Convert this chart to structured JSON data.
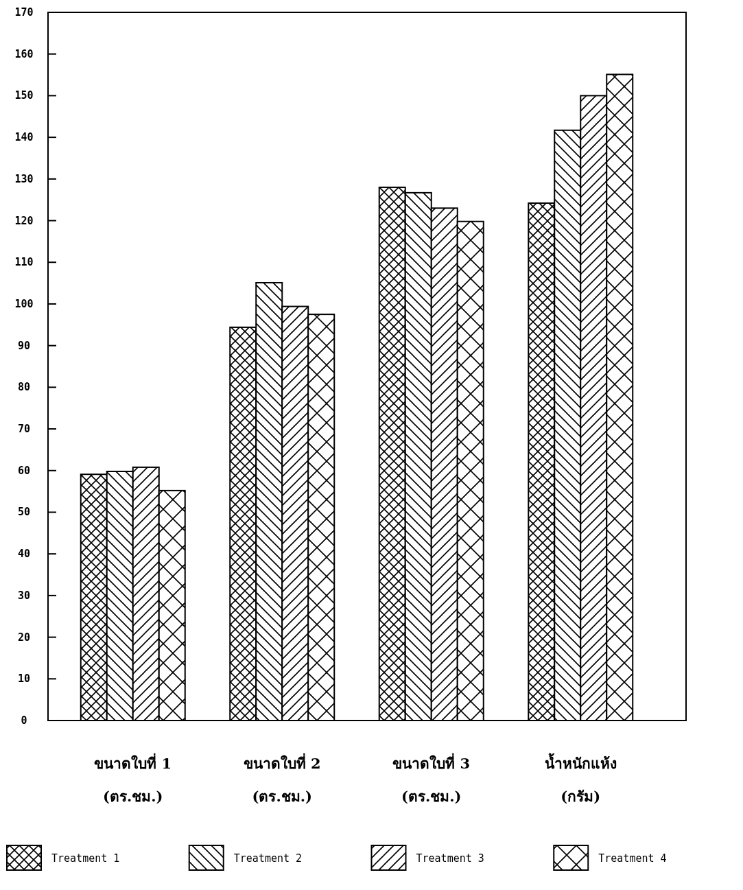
{
  "chart_data": {
    "type": "bar",
    "categories": [
      "ขนาดใบที่ 1\n(ตร.ชม.)",
      "ขนาดใบที่ 2\n(ตร.ชม.)",
      "ขนาดใบที่ 3\n(ตร.ชม.)",
      "น้ำหนักแห้ง\n(กรัม)"
    ],
    "series": [
      {
        "name": "Treatment 1",
        "color": "#000000",
        "values": [
          59.1,
          94.4,
          128.0,
          124.2
        ]
      },
      {
        "name": "Treatment 2",
        "color": "#000000",
        "values": [
          59.8,
          105.1,
          126.7,
          141.7
        ]
      },
      {
        "name": "Treatment 3",
        "color": "#000000",
        "values": [
          60.8,
          99.4,
          123.0,
          150.0
        ]
      },
      {
        "name": "Treatment 4",
        "color": "#000000",
        "values": [
          55.2,
          97.5,
          119.8,
          155.1
        ]
      }
    ],
    "ylim": [
      0,
      170
    ],
    "yticks": [
      0,
      10,
      20,
      30,
      40,
      50,
      60,
      70,
      80,
      90,
      100,
      110,
      120,
      130,
      140,
      150,
      160,
      170
    ],
    "legend": "bottom",
    "grid": false
  }
}
